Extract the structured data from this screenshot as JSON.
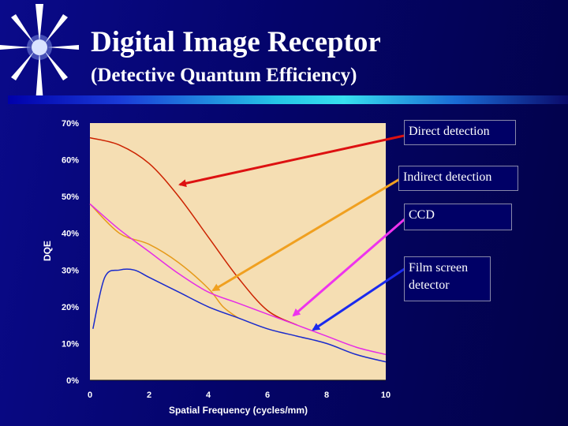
{
  "slide": {
    "title": "Digital Image Receptor",
    "subtitle": "(Detective Quantum Efficiency)"
  },
  "colors": {
    "background": "#06067a",
    "plot_area": "#f5deb3",
    "direct": "#cc2200",
    "indirect": "#e69a1a",
    "ccd": "#e62ce6",
    "film": "#1a2acc"
  },
  "callouts": [
    {
      "id": "direct",
      "label": "Direct detection"
    },
    {
      "id": "indirect",
      "label": "Indirect detection"
    },
    {
      "id": "ccd",
      "label": "CCD"
    },
    {
      "id": "film",
      "label": "Film screen detector"
    }
  ],
  "chart_data": {
    "type": "line",
    "title": "",
    "xlabel": "Spatial Frequency (cycles/mm)",
    "ylabel": "DQE",
    "xlim": [
      0,
      10
    ],
    "ylim": [
      0,
      70
    ],
    "xticks": [
      "0",
      "2",
      "4",
      "6",
      "8",
      "10"
    ],
    "yticks": [
      "0%",
      "10%",
      "20%",
      "30%",
      "40%",
      "50%",
      "60%",
      "70%"
    ],
    "series": [
      {
        "name": "Direct detection",
        "color": "#cc2200",
        "x": [
          0,
          1,
          2,
          3,
          4,
          5,
          6,
          7
        ],
        "y": [
          66,
          64,
          59,
          50,
          39,
          28,
          19,
          15
        ]
      },
      {
        "name": "Indirect detection",
        "color": "#e69a1a",
        "x": [
          0,
          1,
          2,
          3,
          4,
          4.5,
          5
        ],
        "y": [
          48,
          40,
          37,
          32,
          25,
          20,
          17
        ]
      },
      {
        "name": "CCD",
        "color": "#e62ce6",
        "x": [
          0,
          1,
          2,
          3,
          4,
          5,
          6,
          7,
          8,
          9,
          10
        ],
        "y": [
          48,
          41,
          35,
          29,
          24,
          21,
          18,
          15,
          12,
          9,
          7
        ]
      },
      {
        "name": "Film screen detector",
        "color": "#1a2acc",
        "x": [
          0.1,
          0.5,
          1,
          1.5,
          2,
          3,
          4,
          5,
          6,
          7,
          8,
          9,
          10
        ],
        "y": [
          14,
          28,
          30,
          30,
          28,
          24,
          20,
          17,
          14,
          12,
          10,
          7,
          5
        ]
      }
    ]
  }
}
